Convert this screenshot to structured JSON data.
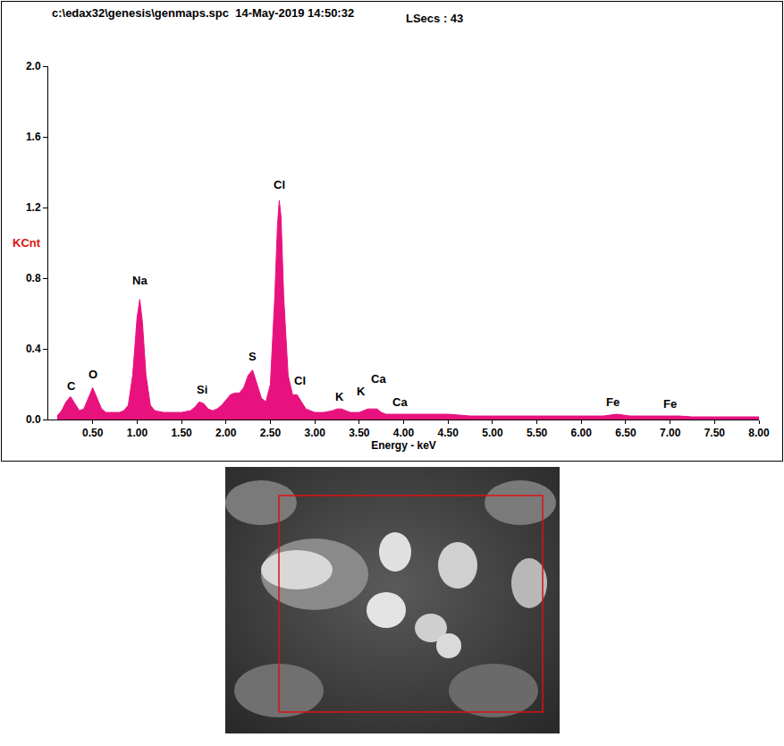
{
  "chart_data": {
    "type": "area",
    "title": "c:\\edax32\\genesis\\genmaps.spc  14-May-2019 14:50:32",
    "subtitle": "LSecs : 43",
    "xlabel": "Energy - keV",
    "ylabel": "KCnt",
    "color": "#e8127f",
    "grid": false,
    "x": [
      0.1,
      0.15,
      0.2,
      0.25,
      0.3,
      0.35,
      0.4,
      0.45,
      0.5,
      0.55,
      0.6,
      0.65,
      0.7,
      0.75,
      0.8,
      0.85,
      0.9,
      0.95,
      1.0,
      1.03,
      1.06,
      1.1,
      1.15,
      1.2,
      1.3,
      1.4,
      1.5,
      1.6,
      1.65,
      1.7,
      1.75,
      1.8,
      1.85,
      1.9,
      1.95,
      2.0,
      2.05,
      2.1,
      2.15,
      2.2,
      2.25,
      2.3,
      2.35,
      2.4,
      2.45,
      2.5,
      2.55,
      2.58,
      2.6,
      2.62,
      2.65,
      2.7,
      2.75,
      2.8,
      2.85,
      2.9,
      2.95,
      3.0,
      3.1,
      3.2,
      3.25,
      3.3,
      3.35,
      3.4,
      3.5,
      3.55,
      3.6,
      3.65,
      3.7,
      3.75,
      3.8,
      3.9,
      4.0,
      4.1,
      4.25,
      4.5,
      4.75,
      5.0,
      5.25,
      5.5,
      5.75,
      6.0,
      6.25,
      6.4,
      6.55,
      6.75,
      7.0,
      7.1,
      7.25,
      7.5,
      7.75,
      8.0
    ],
    "values": [
      0.02,
      0.05,
      0.1,
      0.13,
      0.09,
      0.05,
      0.06,
      0.12,
      0.18,
      0.12,
      0.06,
      0.04,
      0.04,
      0.04,
      0.04,
      0.05,
      0.08,
      0.25,
      0.58,
      0.68,
      0.55,
      0.25,
      0.08,
      0.05,
      0.04,
      0.04,
      0.04,
      0.05,
      0.07,
      0.1,
      0.09,
      0.06,
      0.05,
      0.06,
      0.08,
      0.11,
      0.14,
      0.15,
      0.15,
      0.18,
      0.25,
      0.28,
      0.2,
      0.12,
      0.1,
      0.2,
      0.7,
      1.1,
      1.24,
      1.15,
      0.7,
      0.25,
      0.14,
      0.14,
      0.1,
      0.06,
      0.05,
      0.04,
      0.04,
      0.05,
      0.06,
      0.06,
      0.05,
      0.04,
      0.04,
      0.05,
      0.06,
      0.06,
      0.06,
      0.04,
      0.03,
      0.03,
      0.03,
      0.03,
      0.03,
      0.03,
      0.02,
      0.02,
      0.02,
      0.02,
      0.02,
      0.02,
      0.02,
      0.03,
      0.02,
      0.02,
      0.02,
      0.02,
      0.015,
      0.015,
      0.015,
      0.015
    ],
    "xlim": [
      0,
      8.0
    ],
    "xticks": [
      {
        "value": 0.5,
        "label": "0.50"
      },
      {
        "value": 1.0,
        "label": "1.00"
      },
      {
        "value": 1.5,
        "label": "1.50"
      },
      {
        "value": 2.0,
        "label": "2.00"
      },
      {
        "value": 2.5,
        "label": "2.50"
      },
      {
        "value": 3.0,
        "label": "3.00"
      },
      {
        "value": 3.5,
        "label": "3.50"
      },
      {
        "value": 4.0,
        "label": "4.00"
      },
      {
        "value": 4.5,
        "label": "4.50"
      },
      {
        "value": 5.0,
        "label": "5.00"
      },
      {
        "value": 5.5,
        "label": "5.50"
      },
      {
        "value": 6.0,
        "label": "6.00"
      },
      {
        "value": 6.5,
        "label": "6.50"
      },
      {
        "value": 7.0,
        "label": "7.00"
      },
      {
        "value": 7.5,
        "label": "7.50"
      },
      {
        "value": 8.0,
        "label": "8.00"
      }
    ],
    "ylim": [
      0,
      2.0
    ],
    "yticks": [
      {
        "value": 0,
        "label": "0.0"
      },
      0.4,
      0.8,
      1.2,
      1.6,
      {
        "value": 2.0,
        "label": "2.0"
      }
    ],
    "annotations": [
      {
        "text": "C",
        "x": 0.26,
        "y": 0.14
      },
      {
        "text": "O",
        "x": 0.5,
        "y": 0.21
      },
      {
        "text": "Na",
        "x": 1.03,
        "y": 0.74
      },
      {
        "text": "Si",
        "x": 1.73,
        "y": 0.12
      },
      {
        "text": "S",
        "x": 2.3,
        "y": 0.31
      },
      {
        "text": "Cl",
        "x": 2.6,
        "y": 1.28
      },
      {
        "text": "Cl",
        "x": 2.83,
        "y": 0.17
      },
      {
        "text": "K",
        "x": 3.28,
        "y": 0.08
      },
      {
        "text": "K",
        "x": 3.52,
        "y": 0.11
      },
      {
        "text": "Ca",
        "x": 3.72,
        "y": 0.18
      },
      {
        "text": "Ca",
        "x": 3.96,
        "y": 0.05
      },
      {
        "text": "Fe",
        "x": 6.35,
        "y": 0.05
      },
      {
        "text": "Fe",
        "x": 7.0,
        "y": 0.04
      }
    ]
  }
}
